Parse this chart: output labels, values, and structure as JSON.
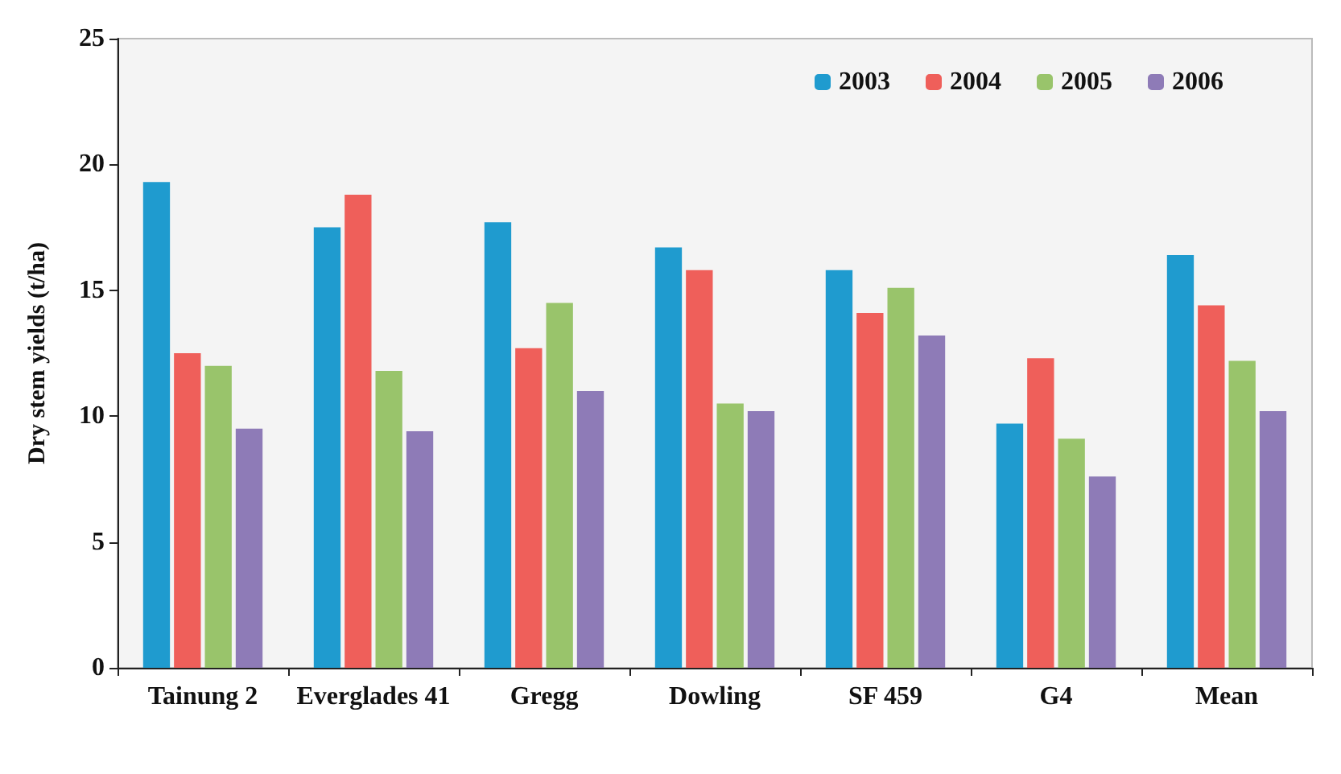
{
  "chart_data": {
    "type": "bar",
    "ylabel": "Dry stem yields (t/ha)",
    "categories": [
      "Tainung 2",
      "Everglades 41",
      "Gregg",
      "Dowling",
      "SF 459",
      "G4",
      "Mean"
    ],
    "series": [
      {
        "name": "2003",
        "color": "#1f9bcf",
        "values": [
          19.3,
          17.5,
          17.7,
          16.7,
          15.8,
          9.7,
          16.4
        ]
      },
      {
        "name": "2004",
        "color": "#ef5f5a",
        "values": [
          12.5,
          18.8,
          12.7,
          15.8,
          14.1,
          12.3,
          14.4
        ]
      },
      {
        "name": "2005",
        "color": "#99c46b",
        "values": [
          12.0,
          11.8,
          14.5,
          10.5,
          15.1,
          9.1,
          12.2
        ]
      },
      {
        "name": "2006",
        "color": "#8e7bb7",
        "values": [
          9.5,
          9.4,
          11.0,
          10.2,
          13.2,
          7.6,
          10.2
        ]
      }
    ],
    "ylim": [
      0,
      25
    ],
    "yticks": [
      0,
      5,
      10,
      15,
      20,
      25
    ],
    "grid": false,
    "legend": "top right"
  }
}
